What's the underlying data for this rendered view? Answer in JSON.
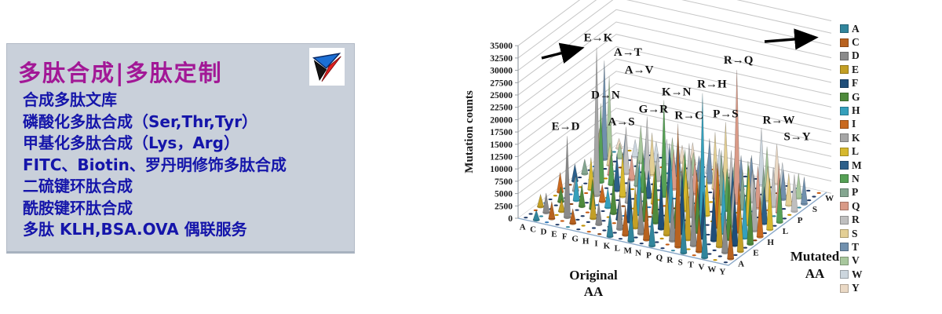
{
  "left_panel": {
    "title": "多肽合成|多肽定制",
    "title_color": "#a21896",
    "item_color": "#1515aa",
    "bg_color": "#c9d0da",
    "items": [
      "合成多肽文库",
      "磷酸化多肽合成（Ser,Thr,Tyr）",
      "甲基化多肽合成（Lys，Arg）",
      "FITC、Biotin、罗丹明修饰多肽合成",
      "二硫键环肽合成",
      "酰胺键环肽合成",
      "多肽 KLH,BSA.OVA 偶联服务"
    ],
    "logo_colors": {
      "blue": "#1c6fd4",
      "red": "#e02020",
      "black": "#141414"
    }
  },
  "chart_data": {
    "type": "bar",
    "subtype": "3d-cone-grid",
    "ylabel": "Mutation counts",
    "xlabel_line1": "Original",
    "xlabel_line2": "AA",
    "zlabel_line1": "Mutated",
    "zlabel_line2": "AA",
    "ylim": [
      0,
      35000
    ],
    "ytick_step": 2500,
    "yticks": [
      0,
      2500,
      5000,
      7500,
      10000,
      12500,
      15000,
      17500,
      20000,
      22500,
      25000,
      27500,
      30000,
      32500,
      35000
    ],
    "x_categories": [
      "A",
      "C",
      "D",
      "E",
      "F",
      "G",
      "H",
      "I",
      "K",
      "L",
      "M",
      "N",
      "P",
      "Q",
      "R",
      "S",
      "T",
      "V",
      "W",
      "Y"
    ],
    "z_categories": [
      "A",
      "C",
      "D",
      "E",
      "F",
      "G",
      "H",
      "I",
      "K",
      "L",
      "M",
      "N",
      "P",
      "Q",
      "R",
      "S",
      "T",
      "V",
      "W",
      "Y"
    ],
    "z_axis_shown": [
      "A",
      "E",
      "H",
      "L",
      "P",
      "S",
      "W"
    ],
    "grid_on": true,
    "legend_position": "right",
    "legend": [
      {
        "label": "A",
        "color": "#31859c"
      },
      {
        "label": "C",
        "color": "#b8621f"
      },
      {
        "label": "D",
        "color": "#8a8a8a"
      },
      {
        "label": "E",
        "color": "#c39f25"
      },
      {
        "label": "F",
        "color": "#1f4e79"
      },
      {
        "label": "G",
        "color": "#4e8a3c"
      },
      {
        "label": "H",
        "color": "#35a0bc"
      },
      {
        "label": "I",
        "color": "#c9691f"
      },
      {
        "label": "K",
        "color": "#a6a6a6"
      },
      {
        "label": "L",
        "color": "#d6b82e"
      },
      {
        "label": "M",
        "color": "#2c5f8a"
      },
      {
        "label": "N",
        "color": "#55a055"
      },
      {
        "label": "P",
        "color": "#84a690"
      },
      {
        "label": "Q",
        "color": "#d99a87"
      },
      {
        "label": "R",
        "color": "#bfbfbf"
      },
      {
        "label": "S",
        "color": "#e3cf95"
      },
      {
        "label": "T",
        "color": "#7090ae"
      },
      {
        "label": "V",
        "color": "#a8c79d"
      },
      {
        "label": "W",
        "color": "#ccd6de"
      },
      {
        "label": "Y",
        "color": "#ead9c5"
      }
    ],
    "annotations": [
      {
        "label": "E→K",
        "orig": "E",
        "mut": "K",
        "value": 30000
      },
      {
        "label": "A→T",
        "orig": "A",
        "mut": "T",
        "value": 20000
      },
      {
        "label": "A→V",
        "orig": "A",
        "mut": "V",
        "value": 16000
      },
      {
        "label": "D→N",
        "orig": "D",
        "mut": "N",
        "value": 16000
      },
      {
        "label": "A→S",
        "orig": "A",
        "mut": "S",
        "value": 7000
      },
      {
        "label": "E→D",
        "orig": "E",
        "mut": "D",
        "value": 16500
      },
      {
        "label": "K→N",
        "orig": "K",
        "mut": "N",
        "value": 19500
      },
      {
        "label": "G→R",
        "orig": "G",
        "mut": "R",
        "value": 12500
      },
      {
        "label": "R→C",
        "orig": "R",
        "mut": "C",
        "value": 25000
      },
      {
        "label": "R→H",
        "orig": "R",
        "mut": "H",
        "value": 27500
      },
      {
        "label": "R→Q",
        "orig": "R",
        "mut": "Q",
        "value": 27000
      },
      {
        "label": "P→S",
        "orig": "P",
        "mut": "S",
        "value": 14000
      },
      {
        "label": "R→W",
        "orig": "R",
        "mut": "W",
        "value": 11500
      },
      {
        "label": "S→Y",
        "orig": "S",
        "mut": "Y",
        "value": 8000
      }
    ],
    "cones_format": [
      "orig_index",
      "mutated_index",
      "count"
    ],
    "cones": [
      [
        3,
        8,
        30000
      ],
      [
        0,
        16,
        20000
      ],
      [
        0,
        17,
        16000
      ],
      [
        2,
        11,
        16000
      ],
      [
        0,
        15,
        7000
      ],
      [
        3,
        2,
        16500
      ],
      [
        8,
        11,
        19500
      ],
      [
        5,
        14,
        12500
      ],
      [
        14,
        1,
        25000
      ],
      [
        14,
        6,
        27500
      ],
      [
        14,
        13,
        27000
      ],
      [
        12,
        15,
        14000
      ],
      [
        14,
        18,
        11500
      ],
      [
        15,
        19,
        8000
      ],
      [
        1,
        0,
        2000
      ],
      [
        2,
        1,
        3500
      ],
      [
        2,
        3,
        2500
      ],
      [
        1,
        2,
        4000
      ],
      [
        1,
        5,
        3000
      ],
      [
        2,
        6,
        5000
      ],
      [
        3,
        5,
        4500
      ],
      [
        4,
        1,
        3000
      ],
      [
        4,
        5,
        6000
      ],
      [
        4,
        7,
        3500
      ],
      [
        5,
        3,
        5500
      ],
      [
        5,
        6,
        4000
      ],
      [
        6,
        2,
        4500
      ],
      [
        6,
        5,
        7000
      ],
      [
        6,
        8,
        5000
      ],
      [
        7,
        4,
        4000
      ],
      [
        7,
        8,
        6500
      ],
      [
        7,
        10,
        5500
      ],
      [
        0,
        3,
        2500
      ],
      [
        0,
        7,
        4000
      ],
      [
        2,
        9,
        6500
      ],
      [
        4,
        10,
        7500
      ],
      [
        5,
        9,
        9000
      ],
      [
        6,
        11,
        8000
      ],
      [
        1,
        8,
        3000
      ],
      [
        5,
        12,
        6000
      ],
      [
        4,
        13,
        5000
      ],
      [
        3,
        11,
        7000
      ],
      [
        2,
        13,
        4000
      ],
      [
        1,
        12,
        2500
      ],
      [
        0,
        10,
        3500
      ],
      [
        7,
        13,
        6000
      ],
      [
        6,
        14,
        5500
      ],
      [
        5,
        15,
        8500
      ],
      [
        4,
        16,
        7000
      ],
      [
        3,
        14,
        9500
      ],
      [
        2,
        16,
        6000
      ],
      [
        1,
        15,
        4500
      ],
      [
        0,
        12,
        3000
      ],
      [
        7,
        16,
        8000
      ],
      [
        6,
        17,
        6500
      ],
      [
        5,
        18,
        5000
      ],
      [
        4,
        18,
        4000
      ],
      [
        3,
        17,
        7500
      ],
      [
        2,
        18,
        3500
      ],
      [
        1,
        17,
        3000
      ],
      [
        0,
        19,
        2000
      ],
      [
        7,
        19,
        4500
      ],
      [
        6,
        19,
        3500
      ],
      [
        8,
        0,
        5000
      ],
      [
        8,
        2,
        7000
      ],
      [
        8,
        4,
        9000
      ],
      [
        8,
        6,
        11000
      ],
      [
        8,
        9,
        6500
      ],
      [
        8,
        13,
        8000
      ],
      [
        8,
        15,
        5500
      ],
      [
        8,
        17,
        4500
      ],
      [
        9,
        1,
        6000
      ],
      [
        9,
        3,
        8500
      ],
      [
        9,
        5,
        10000
      ],
      [
        9,
        7,
        7500
      ],
      [
        9,
        10,
        12000
      ],
      [
        9,
        12,
        6500
      ],
      [
        9,
        14,
        9000
      ],
      [
        9,
        16,
        5000
      ],
      [
        9,
        18,
        4000
      ],
      [
        10,
        0,
        7000
      ],
      [
        10,
        2,
        9500
      ],
      [
        10,
        5,
        12500
      ],
      [
        10,
        8,
        8000
      ],
      [
        10,
        11,
        10500
      ],
      [
        10,
        13,
        7000
      ],
      [
        10,
        16,
        9000
      ],
      [
        10,
        18,
        5500
      ],
      [
        11,
        1,
        8000
      ],
      [
        11,
        4,
        11000
      ],
      [
        11,
        6,
        13000
      ],
      [
        11,
        9,
        9500
      ],
      [
        11,
        12,
        8500
      ],
      [
        11,
        15,
        11500
      ],
      [
        11,
        17,
        6000
      ],
      [
        12,
        0,
        6500
      ],
      [
        12,
        3,
        10000
      ],
      [
        12,
        5,
        8000
      ],
      [
        12,
        8,
        12000
      ],
      [
        12,
        10,
        9000
      ],
      [
        12,
        13,
        7500
      ],
      [
        12,
        17,
        6500
      ],
      [
        13,
        2,
        9000
      ],
      [
        13,
        4,
        13500
      ],
      [
        13,
        7,
        10500
      ],
      [
        13,
        9,
        8000
      ],
      [
        13,
        12,
        11000
      ],
      [
        13,
        14,
        9500
      ],
      [
        13,
        16,
        7000
      ],
      [
        13,
        18,
        5000
      ],
      [
        14,
        3,
        12000
      ],
      [
        14,
        5,
        9000
      ],
      [
        14,
        9,
        10000
      ],
      [
        14,
        11,
        8500
      ],
      [
        14,
        16,
        7500
      ],
      [
        15,
        0,
        8000
      ],
      [
        15,
        2,
        11000
      ],
      [
        15,
        4,
        9500
      ],
      [
        15,
        7,
        13000
      ],
      [
        15,
        10,
        10000
      ],
      [
        15,
        12,
        8000
      ],
      [
        15,
        14,
        6500
      ],
      [
        15,
        17,
        9000
      ],
      [
        16,
        1,
        7500
      ],
      [
        16,
        4,
        10500
      ],
      [
        16,
        6,
        12500
      ],
      [
        16,
        8,
        9000
      ],
      [
        16,
        11,
        11000
      ],
      [
        16,
        13,
        8500
      ],
      [
        16,
        15,
        7000
      ],
      [
        16,
        18,
        5500
      ],
      [
        17,
        0,
        9000
      ],
      [
        17,
        3,
        11500
      ],
      [
        17,
        5,
        13500
      ],
      [
        17,
        7,
        10000
      ],
      [
        17,
        9,
        12000
      ],
      [
        17,
        12,
        9500
      ],
      [
        17,
        14,
        8000
      ],
      [
        17,
        16,
        6000
      ],
      [
        18,
        2,
        8500
      ],
      [
        18,
        4,
        10500
      ],
      [
        18,
        6,
        9000
      ],
      [
        18,
        8,
        11500
      ],
      [
        18,
        10,
        7500
      ],
      [
        18,
        13,
        10000
      ],
      [
        18,
        15,
        6500
      ],
      [
        18,
        17,
        5000
      ],
      [
        19,
        1,
        7000
      ],
      [
        19,
        3,
        9500
      ],
      [
        19,
        5,
        11000
      ],
      [
        19,
        7,
        8500
      ],
      [
        19,
        9,
        10500
      ],
      [
        19,
        11,
        9000
      ],
      [
        19,
        14,
        7500
      ],
      [
        19,
        16,
        5500
      ]
    ],
    "floor_dash_colors": [
      "#1f3864",
      "#1f3864",
      "#c55a11",
      "#1f3864",
      "#2e75b6",
      "#1f3864",
      "#bf8f00",
      "#1f3864",
      "#31859c",
      "#843c0c"
    ]
  }
}
